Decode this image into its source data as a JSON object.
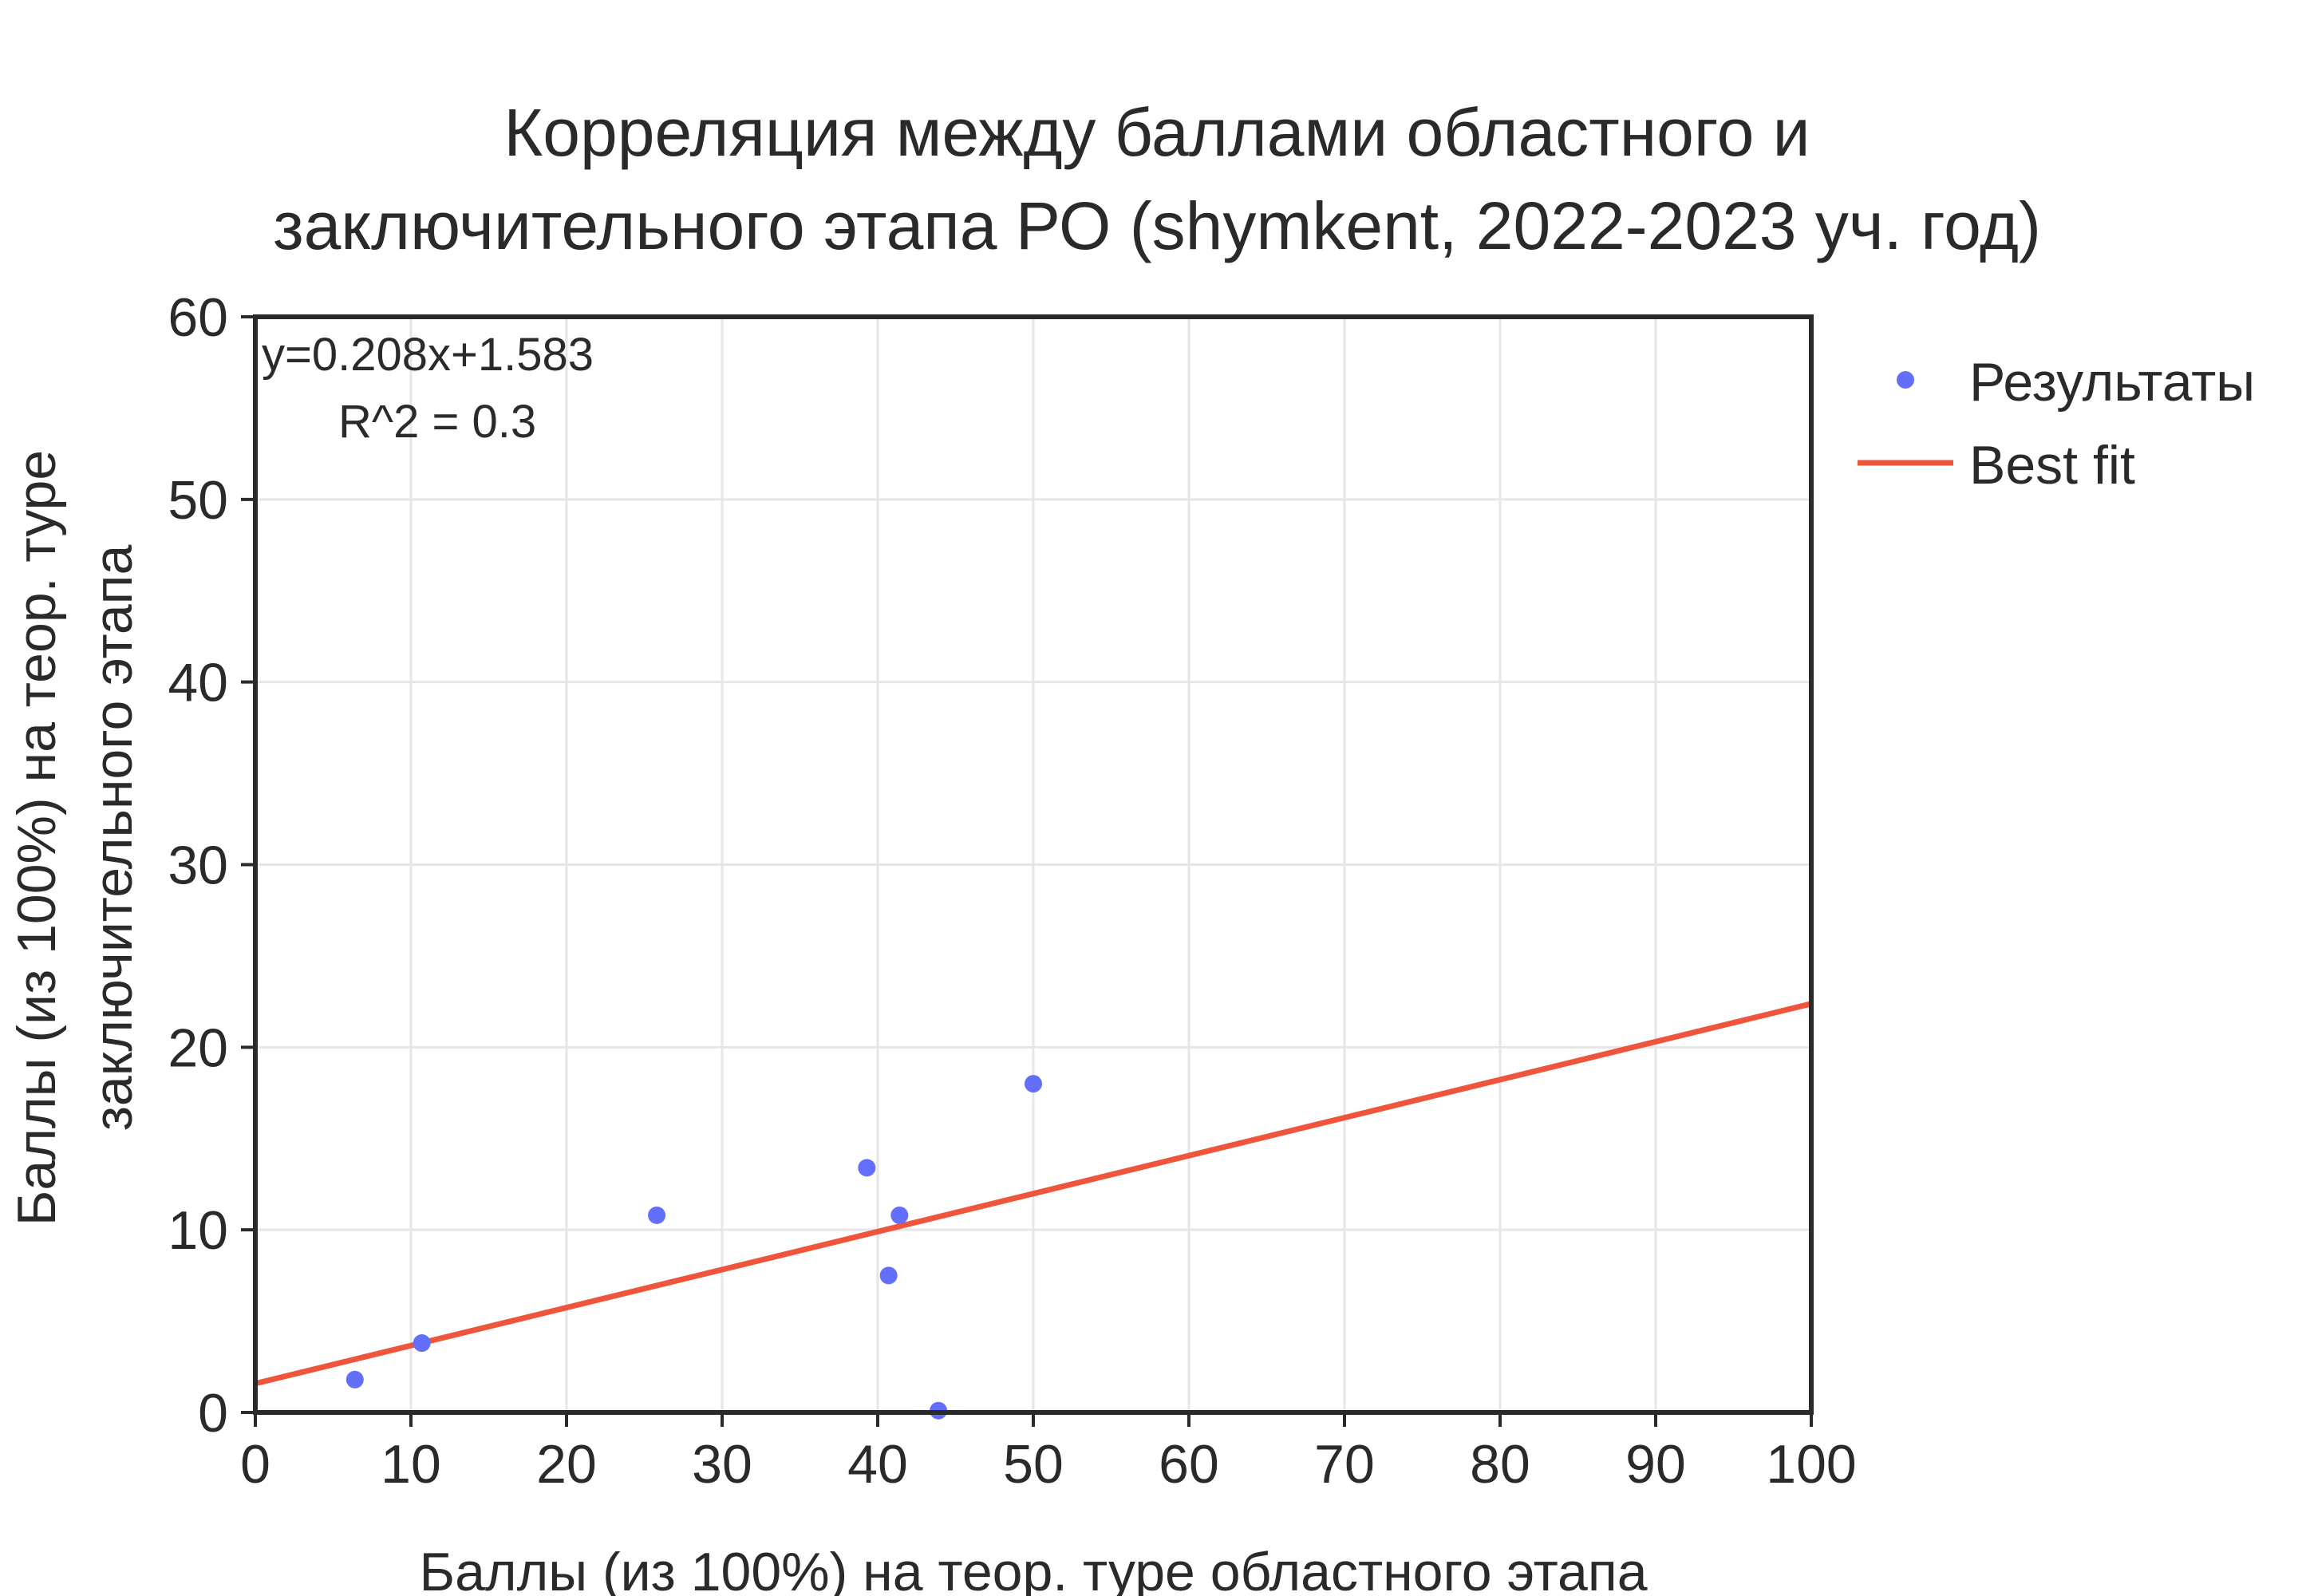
{
  "chart_data": {
    "type": "scatter",
    "title_lines": [
      "Корреляция между баллами областного и",
      "заключительного этапа РО (shymkent, 2022-2023 уч. год)"
    ],
    "xlabel": "Баллы (из 100%) на теор. туре областного этапа",
    "ylabel_lines": [
      "Баллы (из 100%) на теор. туре",
      "заключительного этапа"
    ],
    "xlim": [
      0,
      100
    ],
    "ylim": [
      0,
      60
    ],
    "xticks": [
      0,
      10,
      20,
      30,
      40,
      50,
      60,
      70,
      80,
      90,
      100
    ],
    "yticks": [
      0,
      10,
      20,
      30,
      40,
      50,
      60
    ],
    "grid": true,
    "legend_position": "right",
    "series": [
      {
        "name": "Результаты",
        "kind": "scatter",
        "color": "#636efa",
        "points": [
          {
            "x": 6.4,
            "y": 1.8
          },
          {
            "x": 10.7,
            "y": 3.8
          },
          {
            "x": 25.8,
            "y": 10.8
          },
          {
            "x": 39.3,
            "y": 13.4
          },
          {
            "x": 40.7,
            "y": 7.5
          },
          {
            "x": 41.4,
            "y": 10.8
          },
          {
            "x": 43.9,
            "y": 0.1
          },
          {
            "x": 50.0,
            "y": 18.0
          }
        ]
      },
      {
        "name": "Best fit",
        "kind": "line",
        "color": "#ef553b",
        "slope": 0.208,
        "intercept": 1.583
      }
    ],
    "annotations": [
      "y=0.208x+1.583",
      "R^2 = 0.3"
    ]
  }
}
